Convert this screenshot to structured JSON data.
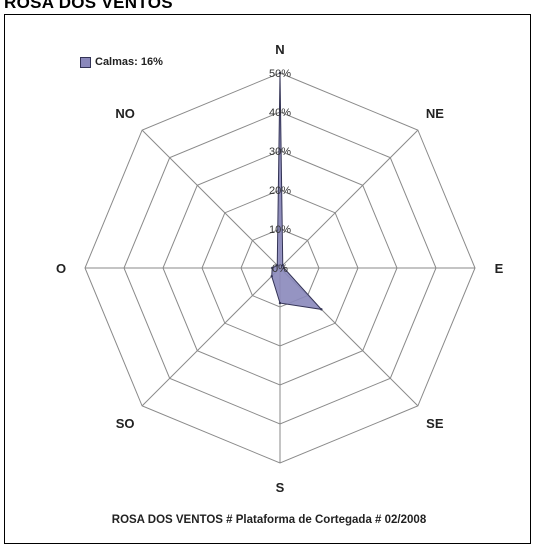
{
  "heading": "ROSA DOS VENTOS",
  "legend": {
    "label": "Calmas: 16%",
    "color": "#8a88bb"
  },
  "caption": "ROSA DOS VENTOS # Plataforma de Cortegada # 02/2008",
  "chart_data": {
    "type": "radar",
    "title": "ROSA DOS VENTOS",
    "directions": [
      "N",
      "NE",
      "E",
      "SE",
      "S",
      "SO",
      "O",
      "NO"
    ],
    "radial_ticks": [
      "0%",
      "10%",
      "20%",
      "30%",
      "40%",
      "50%"
    ],
    "rmax": 50,
    "series": [
      {
        "name": "Calmas: 16%",
        "values": [
          50,
          1,
          1,
          15,
          9,
          3,
          2,
          1
        ],
        "fill": "#8a88bb",
        "stroke": "#333355"
      }
    ],
    "grid": true,
    "legend_position": "top-left"
  }
}
